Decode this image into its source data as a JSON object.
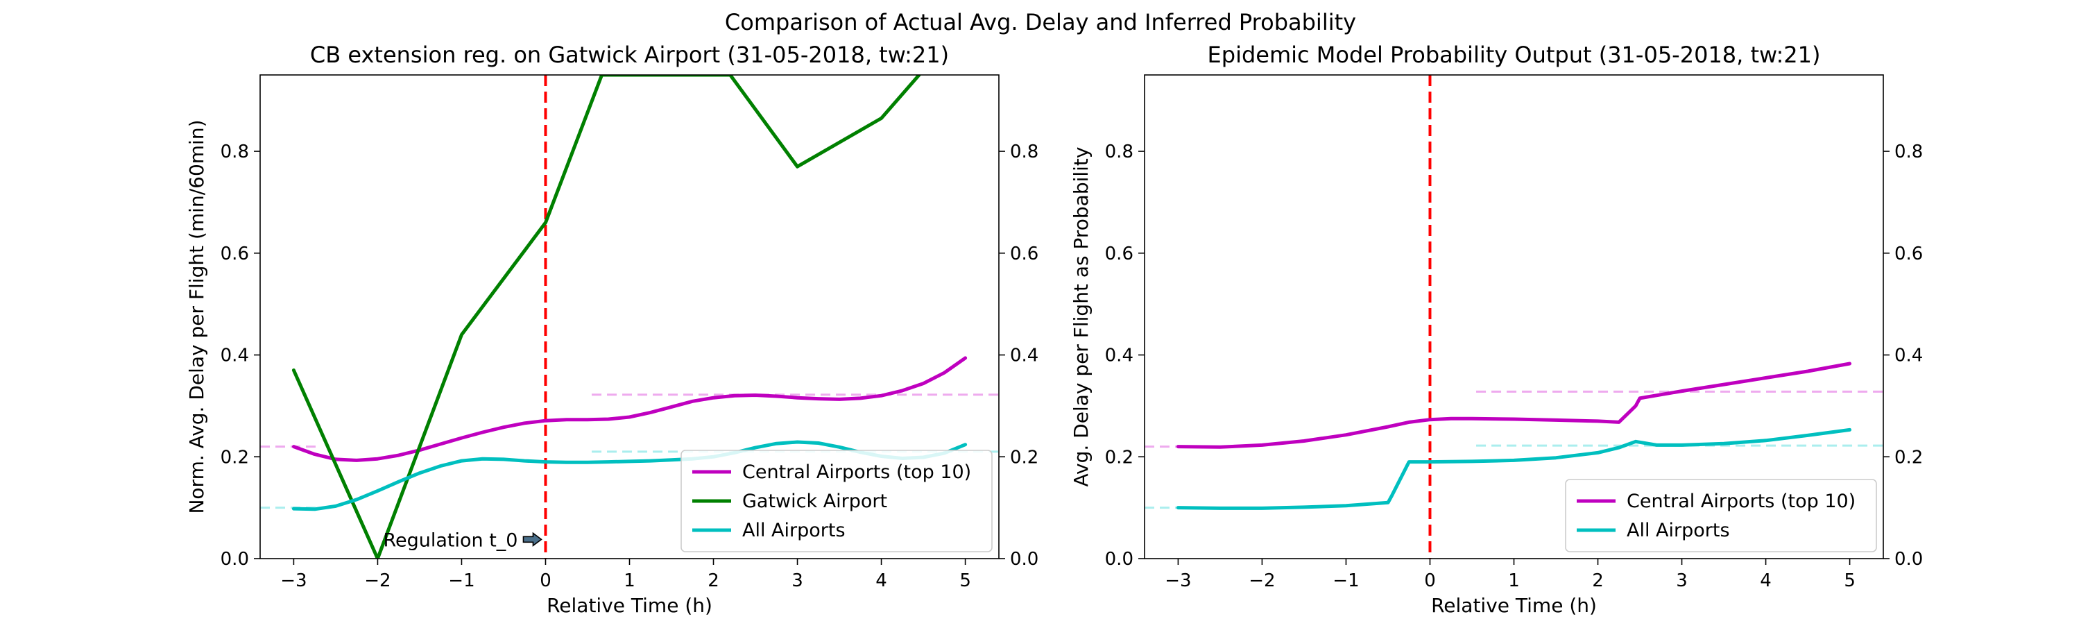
{
  "figure": {
    "title": "Comparison of Actual Avg. Delay and Inferred Probability"
  },
  "colors": {
    "central": "#bf00bf",
    "gatwick": "#008000",
    "all": "#00bfbf",
    "regulation": "#ff0000",
    "central_ref": "#eeaaee",
    "all_ref": "#aaeeee"
  },
  "chart_data": [
    {
      "type": "line",
      "title": "CB extension reg. on Gatwick Airport (31-05-2018, tw:21)",
      "xlabel": "Relative Time (h)",
      "ylabel": "Norm. Avg. Delay per Flight (min/60min)",
      "xlim": [
        -3.4,
        5.4
      ],
      "ylim": [
        0,
        0.95
      ],
      "xticks": [
        -3,
        -2,
        -1,
        0,
        1,
        2,
        3,
        4,
        5
      ],
      "yticks": [
        0.0,
        0.2,
        0.4,
        0.6,
        0.8
      ],
      "secondary_yticks": [
        0.0,
        0.2,
        0.4,
        0.6,
        0.8
      ],
      "grid": false,
      "legend_position": "lower-right",
      "vline_x": 0,
      "annotation": {
        "text": "Regulation t_0",
        "x": 0,
        "y": 0.02
      },
      "series": [
        {
          "name": "Central Airports (top 10)",
          "color_key": "central",
          "x": [
            -3,
            -2.75,
            -2.5,
            -2.25,
            -2,
            -1.75,
            -1.5,
            -1.25,
            -1,
            -0.75,
            -0.5,
            -0.25,
            0,
            0.25,
            0.5,
            0.75,
            1,
            1.25,
            1.5,
            1.75,
            2,
            2.25,
            2.5,
            2.75,
            3,
            3.25,
            3.5,
            3.75,
            4,
            4.25,
            4.5,
            4.75,
            5
          ],
          "y": [
            0.22,
            0.205,
            0.195,
            0.193,
            0.196,
            0.203,
            0.213,
            0.225,
            0.237,
            0.248,
            0.258,
            0.266,
            0.271,
            0.273,
            0.273,
            0.274,
            0.278,
            0.287,
            0.298,
            0.309,
            0.316,
            0.32,
            0.321,
            0.319,
            0.316,
            0.314,
            0.313,
            0.315,
            0.32,
            0.33,
            0.344,
            0.365,
            0.394
          ]
        },
        {
          "name": "Gatwick Airport",
          "color_key": "gatwick",
          "x": [
            -3,
            -2,
            -1,
            0,
            0.67,
            2.2,
            3,
            4,
            4.45
          ],
          "y": [
            0.37,
            0.0,
            0.44,
            0.66,
            0.95,
            0.95,
            0.77,
            0.865,
            0.95
          ]
        },
        {
          "name": "All Airports",
          "color_key": "all",
          "x": [
            -3,
            -2.75,
            -2.5,
            -2.25,
            -2,
            -1.75,
            -1.5,
            -1.25,
            -1,
            -0.75,
            -0.5,
            -0.25,
            0,
            0.25,
            0.5,
            0.75,
            1,
            1.25,
            1.5,
            1.75,
            2,
            2.25,
            2.5,
            2.75,
            3,
            3.25,
            3.5,
            3.75,
            4,
            4.25,
            4.5,
            4.75,
            5
          ],
          "y": [
            0.098,
            0.097,
            0.103,
            0.116,
            0.133,
            0.151,
            0.168,
            0.182,
            0.192,
            0.196,
            0.195,
            0.192,
            0.19,
            0.189,
            0.189,
            0.19,
            0.191,
            0.192,
            0.194,
            0.196,
            0.2,
            0.208,
            0.218,
            0.226,
            0.229,
            0.227,
            0.219,
            0.209,
            0.201,
            0.197,
            0.199,
            0.207,
            0.224
          ]
        }
      ],
      "reference_lines": [
        {
          "color_key": "central_ref",
          "y": 0.22,
          "x": [
            -3.4,
            -2.7
          ]
        },
        {
          "color_key": "central_ref",
          "y": 0.322,
          "x": [
            0.55,
            5.4
          ]
        },
        {
          "color_key": "all_ref",
          "y": 0.1,
          "x": [
            -3.4,
            -2.7
          ]
        },
        {
          "color_key": "all_ref",
          "y": 0.21,
          "x": [
            0.55,
            5.4
          ]
        }
      ]
    },
    {
      "type": "line",
      "title": "Epidemic Model Probability Output (31-05-2018, tw:21)",
      "xlabel": "Relative Time (h)",
      "ylabel": "Avg. Delay per Flight as Probability",
      "xlim": [
        -3.4,
        5.4
      ],
      "ylim": [
        0,
        0.95
      ],
      "xticks": [
        -3,
        -2,
        -1,
        0,
        1,
        2,
        3,
        4,
        5
      ],
      "yticks": [
        0.0,
        0.2,
        0.4,
        0.6,
        0.8
      ],
      "secondary_yticks": [
        0.0,
        0.2,
        0.4,
        0.6,
        0.8
      ],
      "grid": false,
      "legend_position": "lower-right",
      "vline_x": 0,
      "series": [
        {
          "name": "Central Airports (top 10)",
          "color_key": "central",
          "x": [
            -3,
            -2.5,
            -2,
            -1.5,
            -1,
            -0.5,
            -0.25,
            0,
            0.25,
            0.5,
            1,
            1.5,
            2,
            2.25,
            2.45,
            2.5,
            3,
            3.5,
            4,
            4.5,
            5
          ],
          "y": [
            0.22,
            0.219,
            0.223,
            0.231,
            0.243,
            0.259,
            0.268,
            0.273,
            0.275,
            0.275,
            0.274,
            0.272,
            0.27,
            0.268,
            0.3,
            0.315,
            0.329,
            0.342,
            0.355,
            0.368,
            0.383
          ]
        },
        {
          "name": "All Airports",
          "color_key": "all",
          "x": [
            -3,
            -2.5,
            -2,
            -1.5,
            -1,
            -0.5,
            -0.45,
            -0.25,
            0,
            0.5,
            1,
            1.5,
            2,
            2.25,
            2.45,
            2.7,
            3,
            3.5,
            4,
            4.5,
            5
          ],
          "y": [
            0.1,
            0.099,
            0.099,
            0.101,
            0.104,
            0.11,
            0.125,
            0.19,
            0.19,
            0.191,
            0.193,
            0.198,
            0.208,
            0.218,
            0.23,
            0.223,
            0.223,
            0.226,
            0.232,
            0.242,
            0.253
          ]
        }
      ],
      "reference_lines": [
        {
          "color_key": "central_ref",
          "y": 0.22,
          "x": [
            -3.4,
            -2.7
          ]
        },
        {
          "color_key": "central_ref",
          "y": 0.328,
          "x": [
            0.55,
            5.4
          ]
        },
        {
          "color_key": "all_ref",
          "y": 0.1,
          "x": [
            -3.4,
            -2.7
          ]
        },
        {
          "color_key": "all_ref",
          "y": 0.222,
          "x": [
            0.55,
            5.4
          ]
        }
      ]
    }
  ]
}
